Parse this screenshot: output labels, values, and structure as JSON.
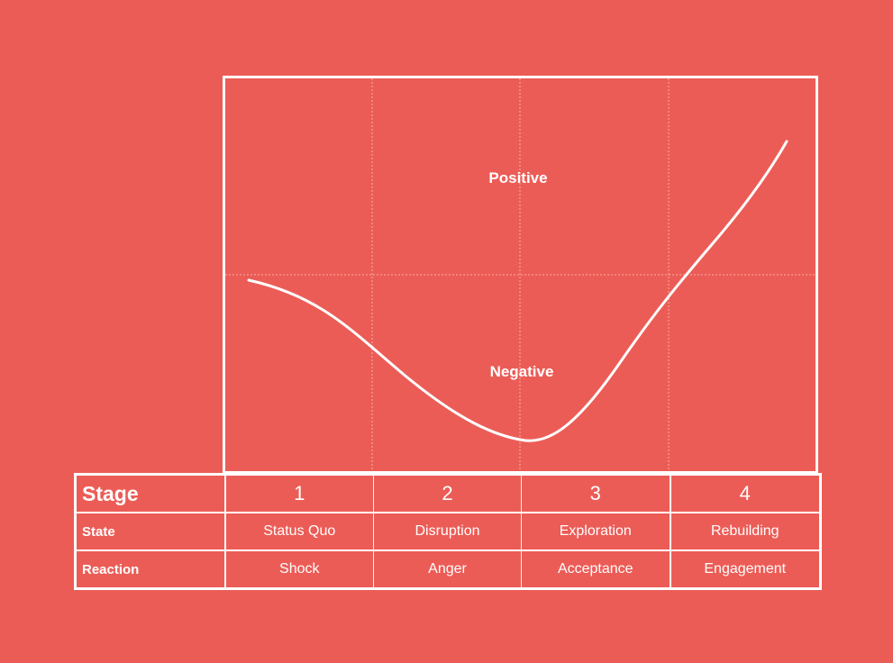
{
  "diagram": {
    "zones": {
      "positive_label": "Positive",
      "negative_label": "Negative"
    },
    "curve_description_points": [
      {
        "stage": 0.15,
        "level": -0.05
      },
      {
        "stage": 1.0,
        "level": -0.45
      },
      {
        "stage": 2.0,
        "level": -0.95
      },
      {
        "stage": 3.0,
        "level": -0.1
      },
      {
        "stage": 3.8,
        "level": 0.75
      }
    ],
    "colors": {
      "background": "#EC5C56",
      "lines": "#FFFFFF"
    }
  },
  "table": {
    "rows": [
      {
        "label": "Stage",
        "cells": [
          "1",
          "2",
          "3",
          "4"
        ]
      },
      {
        "label": "State",
        "cells": [
          "Status Quo",
          "Disruption",
          "Exploration",
          "Rebuilding"
        ]
      },
      {
        "label": "Reaction",
        "cells": [
          "Shock",
          "Anger",
          "Acceptance",
          "Engagement"
        ]
      }
    ]
  }
}
